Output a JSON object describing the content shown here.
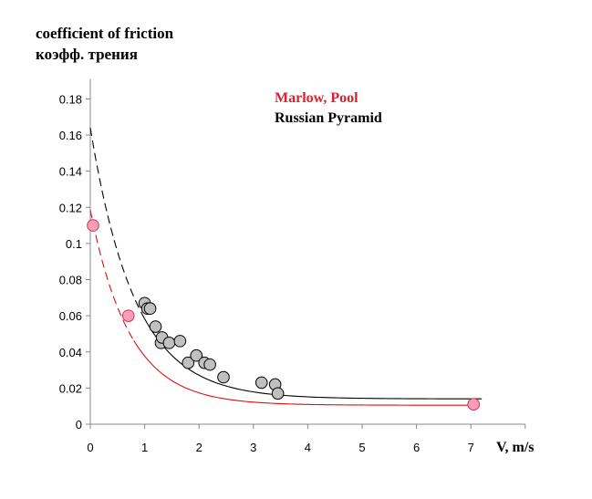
{
  "chart_data": {
    "type": "scatter",
    "ylabel_lines": [
      "coefficient of friction",
      "коэфф. трения"
    ],
    "xlabel": "V, m/s",
    "xlim": [
      0,
      8
    ],
    "ylim": [
      0,
      0.19
    ],
    "x_ticks": [
      "0",
      "1",
      "2",
      "3",
      "4",
      "5",
      "6",
      "7"
    ],
    "y_ticks": [
      "0",
      "0.02",
      "0.04",
      "0.06",
      "0.08",
      "0.1",
      "0.12",
      "0.14",
      "0.16",
      "0.18"
    ],
    "legend_position": "top-right",
    "series": [
      {
        "name": "Marlow, Pool",
        "color": "#dd1111",
        "marker_fill": "#ff9db8",
        "points": [
          [
            0.05,
            0.11
          ],
          [
            0.7,
            0.06
          ],
          [
            7.05,
            0.011
          ]
        ],
        "fit": {
          "a": 0.108,
          "k": 1.38,
          "c": 0.0105,
          "dashed_until": 0.8,
          "x_end": 7.1
        }
      },
      {
        "name": "Russian Pyramid",
        "color": "#000000",
        "marker_fill": "#c0c0c0",
        "points": [
          [
            1.0,
            0.067
          ],
          [
            1.05,
            0.064
          ],
          [
            1.1,
            0.064
          ],
          [
            1.2,
            0.054
          ],
          [
            1.3,
            0.045
          ],
          [
            1.32,
            0.048
          ],
          [
            1.45,
            0.045
          ],
          [
            1.65,
            0.046
          ],
          [
            1.8,
            0.034
          ],
          [
            1.95,
            0.038
          ],
          [
            2.1,
            0.034
          ],
          [
            2.2,
            0.033
          ],
          [
            2.45,
            0.026
          ],
          [
            3.15,
            0.023
          ],
          [
            3.4,
            0.022
          ],
          [
            3.45,
            0.017
          ]
        ],
        "fit": {
          "a": 0.15,
          "k": 1.22,
          "c": 0.014,
          "dashed_until": 1.0,
          "x_end": 7.2
        }
      }
    ]
  }
}
